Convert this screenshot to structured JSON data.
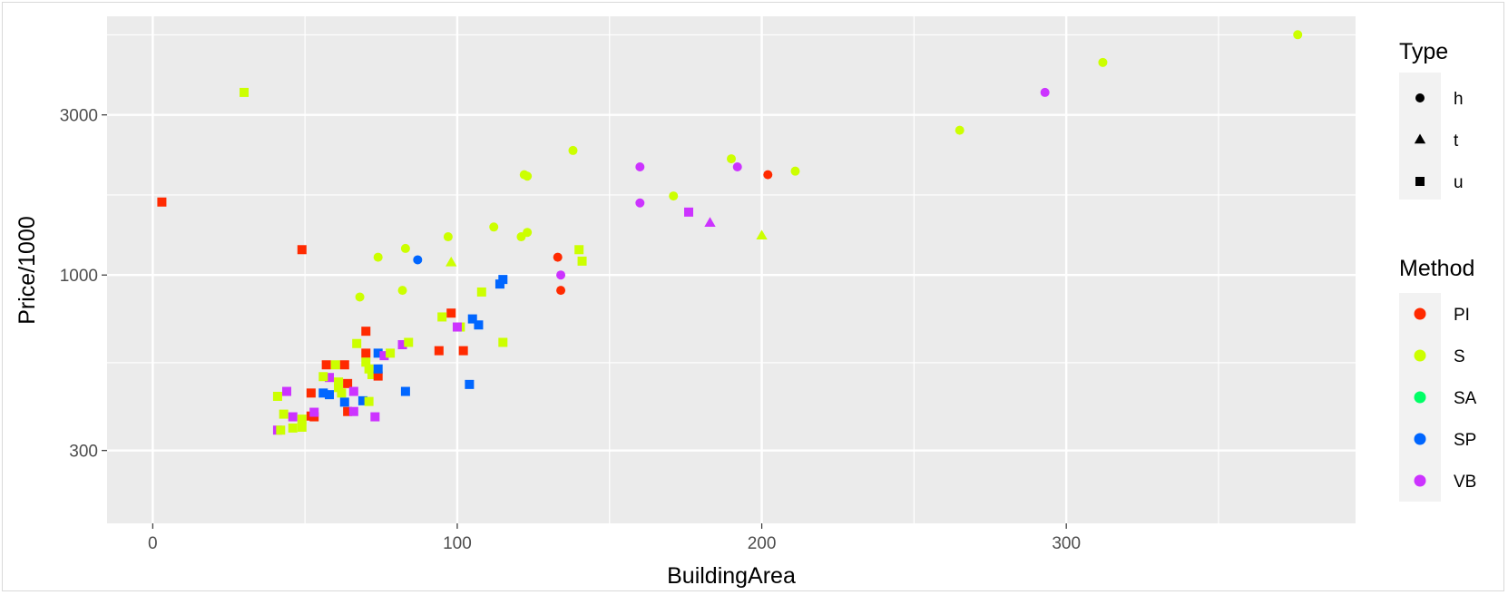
{
  "chart_data": {
    "type": "scatter",
    "xlabel": "BuildingArea",
    "ylabel": "Price/1000",
    "x_ticks": [
      0,
      100,
      200,
      300
    ],
    "y_ticks": [
      300,
      1000,
      3000
    ],
    "x_ticks_text": [
      "0",
      "100",
      "200",
      "300"
    ],
    "y_ticks_text": [
      "300",
      "1000",
      "3000"
    ],
    "xlim": [
      -15,
      395
    ],
    "ylim": [
      182,
      5900
    ],
    "y_scale": "log10",
    "grid": true,
    "legend_position": "right",
    "legend_type": {
      "title": "Type",
      "entries": [
        {
          "label": "h",
          "shape": "circle"
        },
        {
          "label": "t",
          "shape": "triangle"
        },
        {
          "label": "u",
          "shape": "square"
        }
      ]
    },
    "legend_method": {
      "title": "Method",
      "entries": [
        {
          "label": "PI",
          "color": "#FF2A00"
        },
        {
          "label": "S",
          "color": "#CCFF00"
        },
        {
          "label": "SA",
          "color": "#00FF66"
        },
        {
          "label": "SP",
          "color": "#0066FF"
        },
        {
          "label": "VB",
          "color": "#CC33FF"
        }
      ]
    },
    "points": [
      {
        "x": 3,
        "y": 1650,
        "type": "u",
        "method": "PI"
      },
      {
        "x": 30,
        "y": 3500,
        "type": "u",
        "method": "S"
      },
      {
        "x": 49,
        "y": 1190,
        "type": "u",
        "method": "PI"
      },
      {
        "x": 68,
        "y": 860,
        "type": "h",
        "method": "S"
      },
      {
        "x": 74,
        "y": 1130,
        "type": "h",
        "method": "S"
      },
      {
        "x": 82,
        "y": 900,
        "type": "h",
        "method": "S"
      },
      {
        "x": 83,
        "y": 1200,
        "type": "h",
        "method": "S"
      },
      {
        "x": 87,
        "y": 1110,
        "type": "h",
        "method": "SP"
      },
      {
        "x": 97,
        "y": 1300,
        "type": "h",
        "method": "S"
      },
      {
        "x": 98,
        "y": 1090,
        "type": "t",
        "method": "S"
      },
      {
        "x": 98,
        "y": 770,
        "type": "u",
        "method": "PI"
      },
      {
        "x": 95,
        "y": 750,
        "type": "u",
        "method": "S"
      },
      {
        "x": 101,
        "y": 700,
        "type": "u",
        "method": "S"
      },
      {
        "x": 105,
        "y": 740,
        "type": "u",
        "method": "SP"
      },
      {
        "x": 107,
        "y": 710,
        "type": "u",
        "method": "SP"
      },
      {
        "x": 100,
        "y": 700,
        "type": "u",
        "method": "VB"
      },
      {
        "x": 108,
        "y": 890,
        "type": "u",
        "method": "S"
      },
      {
        "x": 112,
        "y": 1390,
        "type": "h",
        "method": "S"
      },
      {
        "x": 114,
        "y": 940,
        "type": "u",
        "method": "SP"
      },
      {
        "x": 115,
        "y": 970,
        "type": "u",
        "method": "SP"
      },
      {
        "x": 115,
        "y": 630,
        "type": "u",
        "method": "S"
      },
      {
        "x": 121,
        "y": 1300,
        "type": "h",
        "method": "S"
      },
      {
        "x": 122,
        "y": 1990,
        "type": "h",
        "method": "S"
      },
      {
        "x": 123,
        "y": 1970,
        "type": "h",
        "method": "S"
      },
      {
        "x": 123,
        "y": 1340,
        "type": "h",
        "method": "S"
      },
      {
        "x": 133,
        "y": 1130,
        "type": "h",
        "method": "PI"
      },
      {
        "x": 134,
        "y": 900,
        "type": "h",
        "method": "PI"
      },
      {
        "x": 134,
        "y": 1000,
        "type": "h",
        "method": "VB"
      },
      {
        "x": 138,
        "y": 2350,
        "type": "h",
        "method": "S"
      },
      {
        "x": 140,
        "y": 1190,
        "type": "u",
        "method": "S"
      },
      {
        "x": 141,
        "y": 1100,
        "type": "u",
        "method": "S"
      },
      {
        "x": 160,
        "y": 2100,
        "type": "h",
        "method": "VB"
      },
      {
        "x": 160,
        "y": 1640,
        "type": "h",
        "method": "VB"
      },
      {
        "x": 171,
        "y": 1720,
        "type": "h",
        "method": "S"
      },
      {
        "x": 176,
        "y": 1540,
        "type": "u",
        "method": "VB"
      },
      {
        "x": 183,
        "y": 1430,
        "type": "t",
        "method": "VB"
      },
      {
        "x": 190,
        "y": 2220,
        "type": "h",
        "method": "S"
      },
      {
        "x": 192,
        "y": 2100,
        "type": "h",
        "method": "VB"
      },
      {
        "x": 200,
        "y": 1310,
        "type": "t",
        "method": "S"
      },
      {
        "x": 202,
        "y": 1990,
        "type": "h",
        "method": "PI"
      },
      {
        "x": 211,
        "y": 2040,
        "type": "h",
        "method": "S"
      },
      {
        "x": 265,
        "y": 2700,
        "type": "h",
        "method": "S"
      },
      {
        "x": 293,
        "y": 3500,
        "type": "h",
        "method": "VB"
      },
      {
        "x": 312,
        "y": 4300,
        "type": "h",
        "method": "S"
      },
      {
        "x": 376,
        "y": 5200,
        "type": "h",
        "method": "S"
      },
      {
        "x": 94,
        "y": 595,
        "type": "u",
        "method": "PI"
      },
      {
        "x": 102,
        "y": 595,
        "type": "u",
        "method": "PI"
      },
      {
        "x": 104,
        "y": 472,
        "type": "u",
        "method": "SP"
      },
      {
        "x": 70,
        "y": 680,
        "type": "u",
        "method": "PI"
      },
      {
        "x": 67,
        "y": 625,
        "type": "u",
        "method": "S"
      },
      {
        "x": 70,
        "y": 585,
        "type": "u",
        "method": "PI"
      },
      {
        "x": 74,
        "y": 585,
        "type": "u",
        "method": "SP"
      },
      {
        "x": 76,
        "y": 575,
        "type": "u",
        "method": "VB"
      },
      {
        "x": 78,
        "y": 585,
        "type": "u",
        "method": "S"
      },
      {
        "x": 82,
        "y": 620,
        "type": "u",
        "method": "VB"
      },
      {
        "x": 84,
        "y": 630,
        "type": "u",
        "method": "S"
      },
      {
        "x": 83,
        "y": 450,
        "type": "u",
        "method": "SP"
      },
      {
        "x": 57,
        "y": 540,
        "type": "u",
        "method": "PI"
      },
      {
        "x": 60,
        "y": 540,
        "type": "u",
        "method": "S"
      },
      {
        "x": 63,
        "y": 540,
        "type": "u",
        "method": "PI"
      },
      {
        "x": 70,
        "y": 550,
        "type": "u",
        "method": "S"
      },
      {
        "x": 71,
        "y": 525,
        "type": "u",
        "method": "S"
      },
      {
        "x": 72,
        "y": 505,
        "type": "u",
        "method": "S"
      },
      {
        "x": 74,
        "y": 500,
        "type": "u",
        "method": "PI"
      },
      {
        "x": 74,
        "y": 525,
        "type": "u",
        "method": "SP"
      },
      {
        "x": 58,
        "y": 495,
        "type": "u",
        "method": "VB"
      },
      {
        "x": 56,
        "y": 498,
        "type": "u",
        "method": "S"
      },
      {
        "x": 61,
        "y": 480,
        "type": "u",
        "method": "S"
      },
      {
        "x": 61,
        "y": 462,
        "type": "u",
        "method": "S"
      },
      {
        "x": 64,
        "y": 475,
        "type": "u",
        "method": "PI"
      },
      {
        "x": 52,
        "y": 445,
        "type": "u",
        "method": "PI"
      },
      {
        "x": 56,
        "y": 445,
        "type": "u",
        "method": "SP"
      },
      {
        "x": 58,
        "y": 440,
        "type": "u",
        "method": "SP"
      },
      {
        "x": 62,
        "y": 445,
        "type": "u",
        "method": "S"
      },
      {
        "x": 66,
        "y": 450,
        "type": "u",
        "method": "VB"
      },
      {
        "x": 63,
        "y": 418,
        "type": "u",
        "method": "SP"
      },
      {
        "x": 69,
        "y": 422,
        "type": "u",
        "method": "SP"
      },
      {
        "x": 71,
        "y": 420,
        "type": "u",
        "method": "S"
      },
      {
        "x": 41,
        "y": 435,
        "type": "u",
        "method": "S"
      },
      {
        "x": 44,
        "y": 450,
        "type": "u",
        "method": "VB"
      },
      {
        "x": 43,
        "y": 385,
        "type": "u",
        "method": "S"
      },
      {
        "x": 46,
        "y": 378,
        "type": "u",
        "method": "VB"
      },
      {
        "x": 49,
        "y": 372,
        "type": "u",
        "method": "S"
      },
      {
        "x": 52,
        "y": 380,
        "type": "u",
        "method": "PI"
      },
      {
        "x": 53,
        "y": 378,
        "type": "u",
        "method": "PI"
      },
      {
        "x": 53,
        "y": 390,
        "type": "u",
        "method": "VB"
      },
      {
        "x": 64,
        "y": 392,
        "type": "u",
        "method": "PI"
      },
      {
        "x": 66,
        "y": 392,
        "type": "u",
        "method": "VB"
      },
      {
        "x": 73,
        "y": 378,
        "type": "u",
        "method": "VB"
      },
      {
        "x": 41,
        "y": 345,
        "type": "u",
        "method": "VB"
      },
      {
        "x": 42,
        "y": 345,
        "type": "u",
        "method": "S"
      },
      {
        "x": 46,
        "y": 350,
        "type": "u",
        "method": "S"
      },
      {
        "x": 49,
        "y": 352,
        "type": "u",
        "method": "S"
      }
    ]
  }
}
